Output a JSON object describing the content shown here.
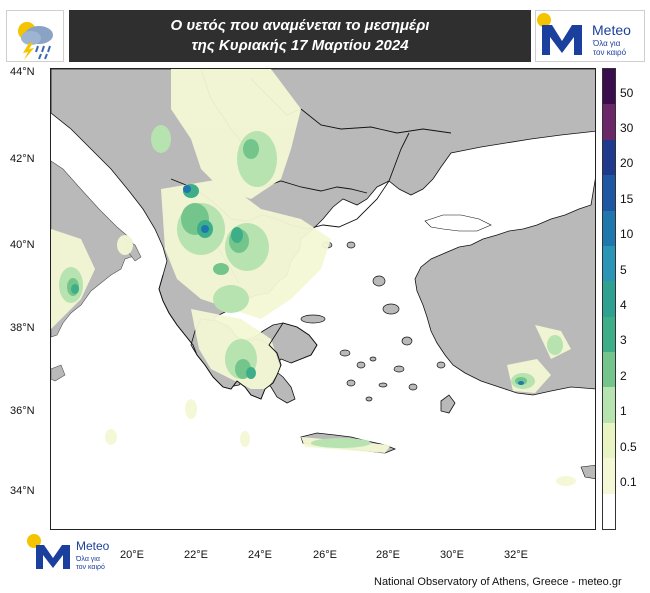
{
  "header": {
    "title_line1": "Ο υετός που αναμένεται το μεσημέρι",
    "title_line2": "της Κυριακής 17 Μαρτίου 2024",
    "icon": "rain-cloud-lightning-icon"
  },
  "logo": {
    "brand": "Meteo",
    "tagline_line1": "Όλα για",
    "tagline_line2": "τον καιρό",
    "colors": {
      "sun": "#f5c400",
      "m": "#1b3f9c",
      "text": "#1b3f9c"
    }
  },
  "map": {
    "lat_labels": [
      "44°N",
      "42°N",
      "40°N",
      "38°N",
      "36°N",
      "34°N"
    ],
    "lon_labels": [
      "20°E",
      "22°E",
      "24°E",
      "26°E",
      "28°E",
      "30°E",
      "32°E"
    ],
    "colors": {
      "land": "#b9b9b9",
      "sea": "#ffffff",
      "border": "#111111"
    }
  },
  "legend": {
    "labels": [
      "50",
      "30",
      "20",
      "15",
      "10",
      "5",
      "4",
      "3",
      "2",
      "1",
      "0.5",
      "0.1"
    ],
    "colors": [
      "#3a0e4d",
      "#6a2868",
      "#1f3a8c",
      "#1e58a3",
      "#1f78ad",
      "#2b95b8",
      "#2ea191",
      "#3dae88",
      "#74c58c",
      "#b6e3b0",
      "#e8f4c2",
      "#f4f8d4",
      "#ffffff"
    ]
  },
  "footer": {
    "credit": "National Observatory of Athens, Greece - meteo.gr"
  }
}
